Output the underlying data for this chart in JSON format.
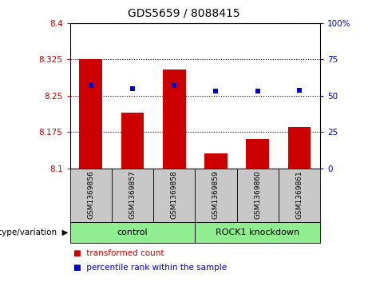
{
  "title": "GDS5659 / 8088415",
  "samples": [
    "GSM1369856",
    "GSM1369857",
    "GSM1369858",
    "GSM1369859",
    "GSM1369860",
    "GSM1369861"
  ],
  "bar_values": [
    8.325,
    8.215,
    8.305,
    8.13,
    8.16,
    8.185
  ],
  "percentile_values": [
    57,
    55,
    57,
    53,
    53,
    54
  ],
  "ylim_left": [
    8.1,
    8.4
  ],
  "ylim_right": [
    0,
    100
  ],
  "yticks_left": [
    8.1,
    8.175,
    8.25,
    8.325,
    8.4
  ],
  "ytick_labels_left": [
    "8.1",
    "8.175",
    "8.25",
    "8.325",
    "8.4"
  ],
  "yticks_right": [
    0,
    25,
    50,
    75,
    100
  ],
  "ytick_labels_right": [
    "0",
    "25",
    "50",
    "75",
    "100%"
  ],
  "bar_color": "#cc0000",
  "dot_color": "#0000cc",
  "group_spans": [
    [
      0,
      3,
      "control"
    ],
    [
      3,
      6,
      "ROCK1 knockdown"
    ]
  ],
  "group_color": "#90ee90",
  "sample_box_color": "#c8c8c8",
  "tick_color_left": "#cc0000",
  "tick_color_right": "#0000cc",
  "legend_red_label": "transformed count",
  "legend_blue_label": "percentile rank within the sample",
  "genotype_label": "genotype/variation"
}
